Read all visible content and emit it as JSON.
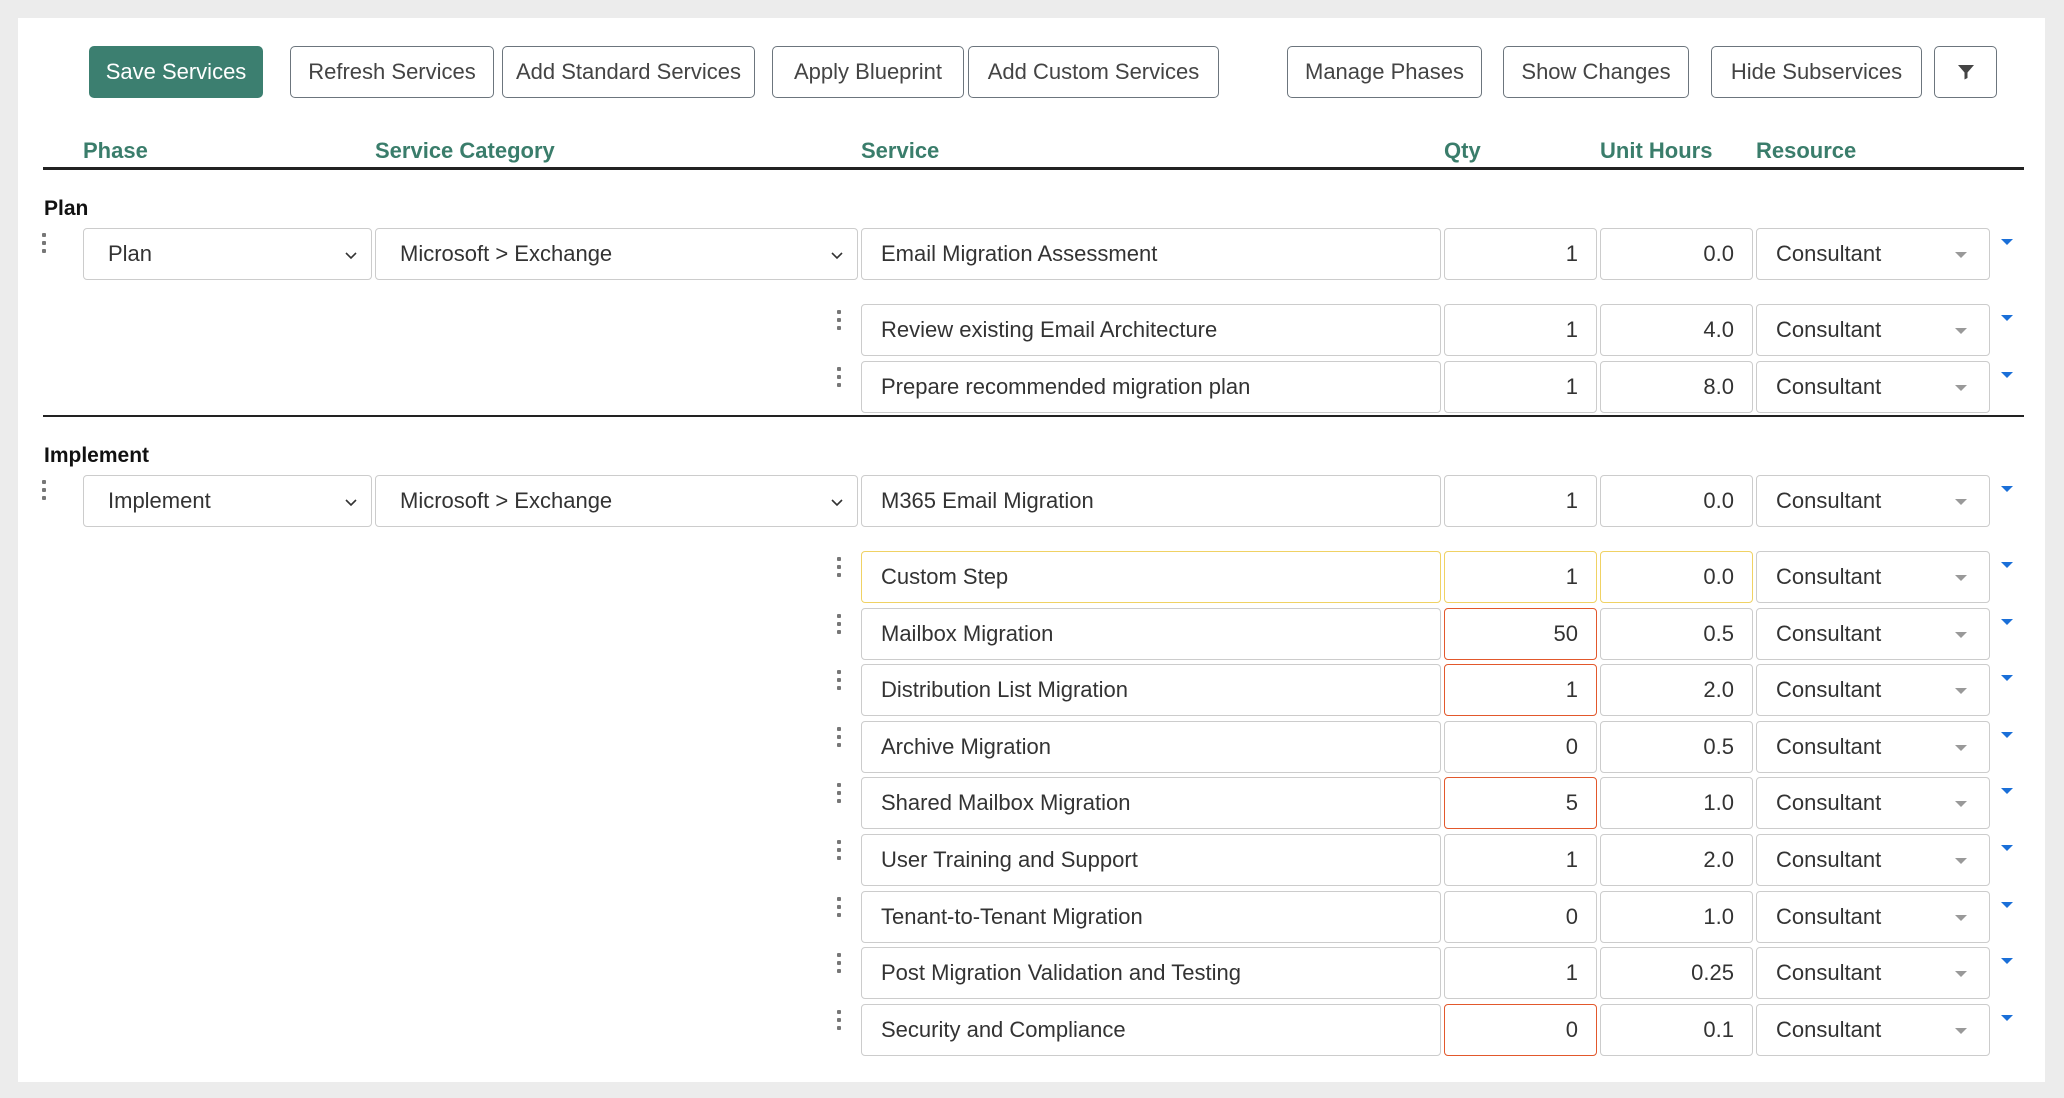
{
  "toolbar": {
    "save": "Save Services",
    "refresh": "Refresh Services",
    "add_standard": "Add Standard Services",
    "apply_blueprint": "Apply Blueprint",
    "add_custom": "Add Custom Services",
    "manage_phases": "Manage Phases",
    "show_changes": "Show Changes",
    "hide_subservices": "Hide Subservices",
    "filter_icon": "filter-icon"
  },
  "columns": {
    "phase": "Phase",
    "category": "Service Category",
    "service": "Service",
    "qty": "Qty",
    "unit_hours": "Unit Hours",
    "resource": "Resource"
  },
  "groups": [
    {
      "title": "Plan",
      "main": {
        "phase": "Plan",
        "category": "Microsoft > Exchange",
        "service": "Email Migration Assessment",
        "qty": "1",
        "hours": "0.0",
        "resource": "Consultant"
      },
      "subs": [
        {
          "service": "Review existing Email Architecture",
          "qty": "1",
          "hours": "4.0",
          "resource": "Consultant",
          "status": "normal"
        },
        {
          "service": "Prepare recommended migration plan",
          "qty": "1",
          "hours": "8.0",
          "resource": "Consultant",
          "status": "normal"
        }
      ]
    },
    {
      "title": "Implement",
      "main": {
        "phase": "Implement",
        "category": "Microsoft > Exchange",
        "service": "M365 Email Migration",
        "qty": "1",
        "hours": "0.0",
        "resource": "Consultant"
      },
      "subs": [
        {
          "service": "Custom Step",
          "qty": "1",
          "hours": "0.0",
          "resource": "Consultant",
          "status": "custom"
        },
        {
          "service": "Mailbox Migration",
          "qty": "50",
          "hours": "0.5",
          "resource": "Consultant",
          "status": "changed"
        },
        {
          "service": "Distribution List Migration",
          "qty": "1",
          "hours": "2.0",
          "resource": "Consultant",
          "status": "changed"
        },
        {
          "service": "Archive Migration",
          "qty": "0",
          "hours": "0.5",
          "resource": "Consultant",
          "status": "normal"
        },
        {
          "service": "Shared Mailbox Migration",
          "qty": "5",
          "hours": "1.0",
          "resource": "Consultant",
          "status": "changed"
        },
        {
          "service": "User Training and Support",
          "qty": "1",
          "hours": "2.0",
          "resource": "Consultant",
          "status": "normal"
        },
        {
          "service": "Tenant-to-Tenant Migration",
          "qty": "0",
          "hours": "1.0",
          "resource": "Consultant",
          "status": "normal"
        },
        {
          "service": "Post Migration Validation and Testing",
          "qty": "1",
          "hours": "0.25",
          "resource": "Consultant",
          "status": "normal"
        },
        {
          "service": "Security and Compliance",
          "qty": "0",
          "hours": "0.1",
          "resource": "Consultant",
          "status": "changed"
        }
      ]
    }
  ],
  "colors": {
    "primary": "#3c7f70",
    "header_text": "#3a7d6b",
    "custom_border": "#f0d264",
    "changed_border": "#e2582c",
    "expander": "#1a6fd8"
  }
}
